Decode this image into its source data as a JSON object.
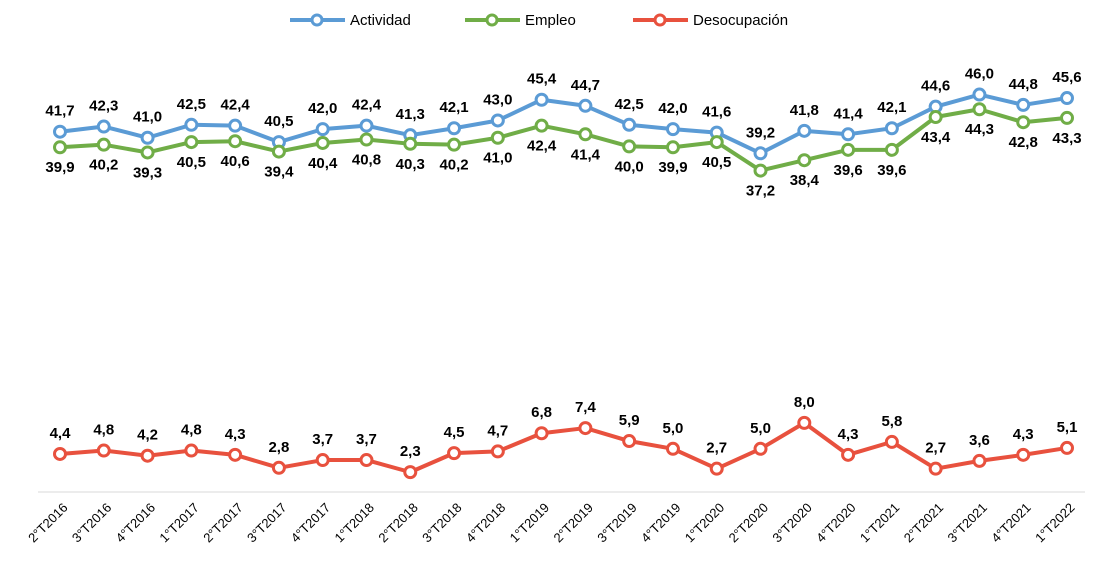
{
  "chart_data": {
    "type": "line",
    "categories": [
      "2°T2016",
      "3°T2016",
      "4°T2016",
      "1°T2017",
      "2°T2017",
      "3°T2017",
      "4°T2017",
      "1°T2018",
      "2°T2018",
      "3°T2018",
      "4°T2018",
      "1°T2019",
      "2°T2019",
      "3°T2019",
      "4°T2019",
      "1°T2020",
      "2°T2020",
      "3°T2020",
      "4°T2020",
      "1°T2021",
      "2°T2021",
      "3°T2021",
      "4°T2021",
      "1°T2022"
    ],
    "series": [
      {
        "name": "Actividad",
        "color": "#5b9bd5",
        "label_position": "above",
        "values": [
          41.7,
          42.3,
          41.0,
          42.5,
          42.4,
          40.5,
          42.0,
          42.4,
          41.3,
          42.1,
          43.0,
          45.4,
          44.7,
          42.5,
          42.0,
          41.6,
          39.2,
          41.8,
          41.4,
          42.1,
          44.6,
          46.0,
          44.8,
          45.6
        ],
        "value_labels": [
          "41,7",
          "42,3",
          "41,0",
          "42,5",
          "42,4",
          "40,5",
          "42,0",
          "42,4",
          "41,3",
          "42,1",
          "43,0",
          "45,4",
          "44,7",
          "42,5",
          "42,0",
          "41,6",
          "39,2",
          "41,8",
          "41,4",
          "42,1",
          "44,6",
          "46,0",
          "44,8",
          "45,6"
        ]
      },
      {
        "name": "Empleo",
        "color": "#70ad47",
        "label_position": "below",
        "values": [
          39.9,
          40.2,
          39.3,
          40.5,
          40.6,
          39.4,
          40.4,
          40.8,
          40.3,
          40.2,
          41.0,
          42.4,
          41.4,
          40.0,
          39.9,
          40.5,
          37.2,
          38.4,
          39.6,
          39.6,
          43.4,
          44.3,
          42.8,
          43.3
        ],
        "value_labels": [
          "39,9",
          "40,2",
          "39,3",
          "40,5",
          "40,6",
          "39,4",
          "40,4",
          "40,8",
          "40,3",
          "40,2",
          "41,0",
          "42,4",
          "41,4",
          "40,0",
          "39,9",
          "40,5",
          "37,2",
          "38,4",
          "39,6",
          "39,6",
          "43,4",
          "44,3",
          "42,8",
          "43,3"
        ]
      },
      {
        "name": "Desocupación",
        "color": "#e8513e",
        "label_position": "above",
        "values": [
          4.4,
          4.8,
          4.2,
          4.8,
          4.3,
          2.8,
          3.7,
          3.7,
          2.3,
          4.5,
          4.7,
          6.8,
          7.4,
          5.9,
          5.0,
          2.7,
          5.0,
          8.0,
          4.3,
          5.8,
          2.7,
          3.6,
          4.3,
          5.1
        ],
        "value_labels": [
          "4,4",
          "4,8",
          "4,2",
          "4,8",
          "4,3",
          "2,8",
          "3,7",
          "3,7",
          "2,3",
          "4,5",
          "4,7",
          "6,8",
          "7,4",
          "5,9",
          "5,0",
          "2,7",
          "5,0",
          "8,0",
          "4,3",
          "5,8",
          "2,7",
          "3,6",
          "4,3",
          "5,1"
        ]
      }
    ],
    "ylim": [
      0,
      50
    ],
    "legend": "top"
  }
}
